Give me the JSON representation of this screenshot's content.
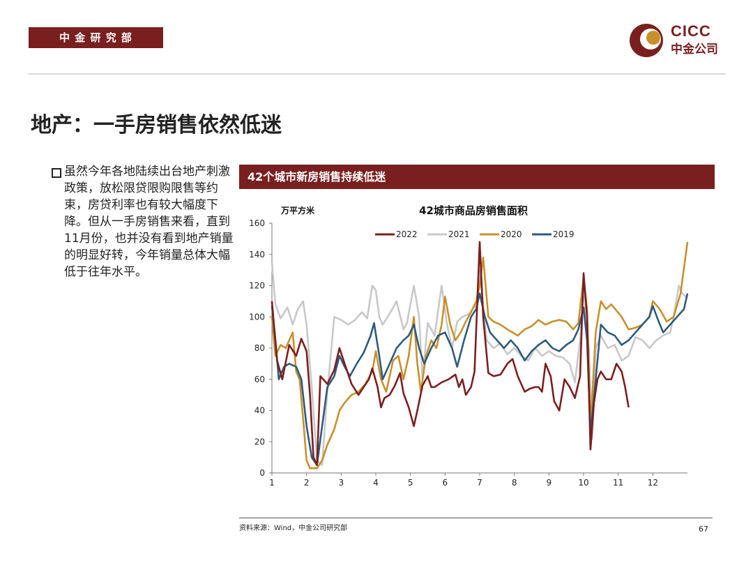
{
  "header": {
    "dept": "中 金 研 究 部",
    "logo_en": "CICC",
    "logo_cn": "中金公司"
  },
  "page_title": "地产：一手房销售依然低迷",
  "bullet": "虽然今年各地陆续出台地产刺激政策，放松限贷限购限售等约束，房贷利率也有较大幅度下降。但从一手房销售来看，直到11月份，也并没有看到地产销量的明显好转，今年销量总体大幅低于往年水平。",
  "chart_banner": "42个城市新房销售持续低迷",
  "source": "资料来源：Wind，中金公司研究部",
  "page_number": "67",
  "colors": {
    "brand": "#7a1f1f",
    "2022": "#7a1f1f",
    "2021": "#c8c8c8",
    "2020": "#c8902a",
    "2019": "#2e5a7e"
  },
  "chart_data": {
    "type": "line",
    "title": "42城市商品房销售面积",
    "ylabel": "万平方米",
    "ylim": [
      0,
      160
    ],
    "yticks": [
      "0",
      "20",
      "40",
      "60",
      "80",
      "100",
      "120",
      "140",
      "160"
    ],
    "xlim": [
      1,
      13
    ],
    "xticks": [
      "1",
      "2",
      "3",
      "4",
      "5",
      "6",
      "7",
      "8",
      "9",
      "10",
      "11",
      "12"
    ],
    "legend_position": "top",
    "series": [
      {
        "name": "2022",
        "color": "#7a1f1f",
        "points": [
          [
            1,
            110
          ],
          [
            1.15,
            72
          ],
          [
            1.3,
            60
          ],
          [
            1.5,
            82
          ],
          [
            1.7,
            75
          ],
          [
            1.85,
            86
          ],
          [
            2.0,
            78
          ],
          [
            2.1,
            50
          ],
          [
            2.2,
            10
          ],
          [
            2.3,
            5
          ],
          [
            2.4,
            62
          ],
          [
            2.6,
            57
          ],
          [
            2.8,
            66
          ],
          [
            2.95,
            80
          ],
          [
            3.1,
            70
          ],
          [
            3.3,
            57
          ],
          [
            3.5,
            50
          ],
          [
            3.65,
            55
          ],
          [
            3.8,
            60
          ],
          [
            3.9,
            67
          ],
          [
            4.05,
            55
          ],
          [
            4.15,
            42
          ],
          [
            4.25,
            48
          ],
          [
            4.4,
            50
          ],
          [
            4.55,
            56
          ],
          [
            4.7,
            64
          ],
          [
            4.8,
            51
          ],
          [
            4.95,
            42
          ],
          [
            5.1,
            30
          ],
          [
            5.2,
            40
          ],
          [
            5.35,
            56
          ],
          [
            5.5,
            62
          ],
          [
            5.6,
            55
          ],
          [
            5.7,
            55
          ],
          [
            5.9,
            58
          ],
          [
            6.1,
            60
          ],
          [
            6.3,
            63
          ],
          [
            6.4,
            55
          ],
          [
            6.5,
            60
          ],
          [
            6.6,
            50
          ],
          [
            6.75,
            55
          ],
          [
            6.85,
            65
          ],
          [
            7.0,
            148
          ],
          [
            7.1,
            100
          ],
          [
            7.25,
            64
          ],
          [
            7.4,
            62
          ],
          [
            7.6,
            63
          ],
          [
            7.8,
            70
          ],
          [
            7.95,
            73
          ],
          [
            8.1,
            62
          ],
          [
            8.2,
            57
          ],
          [
            8.3,
            52
          ],
          [
            8.45,
            54
          ],
          [
            8.6,
            55
          ],
          [
            8.7,
            55
          ],
          [
            8.8,
            52
          ],
          [
            8.9,
            70
          ],
          [
            9.05,
            62
          ],
          [
            9.15,
            46
          ],
          [
            9.3,
            40
          ],
          [
            9.45,
            60
          ],
          [
            9.6,
            55
          ],
          [
            9.75,
            48
          ],
          [
            9.9,
            62
          ],
          [
            10.0,
            128
          ],
          [
            10.1,
            100
          ],
          [
            10.2,
            15
          ],
          [
            10.3,
            45
          ],
          [
            10.4,
            60
          ],
          [
            10.5,
            65
          ],
          [
            10.65,
            60
          ],
          [
            10.8,
            60
          ],
          [
            10.95,
            70
          ],
          [
            11.1,
            65
          ],
          [
            11.2,
            55
          ],
          [
            11.3,
            42
          ]
        ]
      },
      {
        "name": "2021",
        "color": "#c8c8c8",
        "points": [
          [
            1,
            135
          ],
          [
            1.1,
            108
          ],
          [
            1.25,
            99
          ],
          [
            1.45,
            106
          ],
          [
            1.6,
            95
          ],
          [
            1.75,
            105
          ],
          [
            1.9,
            110
          ],
          [
            2.0,
            95
          ],
          [
            2.15,
            55
          ],
          [
            2.3,
            8
          ],
          [
            2.45,
            5
          ],
          [
            2.6,
            52
          ],
          [
            2.8,
            100
          ],
          [
            3.0,
            98
          ],
          [
            3.2,
            95
          ],
          [
            3.4,
            98
          ],
          [
            3.6,
            103
          ],
          [
            3.75,
            99
          ],
          [
            3.9,
            120
          ],
          [
            4.0,
            117
          ],
          [
            4.1,
            100
          ],
          [
            4.2,
            95
          ],
          [
            4.4,
            102
          ],
          [
            4.6,
            110
          ],
          [
            4.8,
            92
          ],
          [
            4.9,
            96
          ],
          [
            5.1,
            120
          ],
          [
            5.25,
            100
          ],
          [
            5.35,
            60
          ],
          [
            5.5,
            96
          ],
          [
            5.7,
            88
          ],
          [
            5.9,
            120
          ],
          [
            6.05,
            96
          ],
          [
            6.2,
            80
          ],
          [
            6.35,
            97
          ],
          [
            6.5,
            100
          ],
          [
            6.7,
            102
          ],
          [
            6.9,
            108
          ],
          [
            7.0,
            130
          ],
          [
            7.2,
            85
          ],
          [
            7.4,
            80
          ],
          [
            7.6,
            83
          ],
          [
            7.8,
            76
          ],
          [
            8.0,
            80
          ],
          [
            8.2,
            75
          ],
          [
            8.4,
            72
          ],
          [
            8.6,
            80
          ],
          [
            8.8,
            75
          ],
          [
            9.0,
            78
          ],
          [
            9.2,
            75
          ],
          [
            9.4,
            74
          ],
          [
            9.6,
            70
          ],
          [
            9.75,
            58
          ],
          [
            9.9,
            85
          ],
          [
            10.0,
            120
          ],
          [
            10.15,
            80
          ],
          [
            10.25,
            22
          ],
          [
            10.35,
            80
          ],
          [
            10.5,
            88
          ],
          [
            10.7,
            80
          ],
          [
            10.9,
            82
          ],
          [
            11.1,
            72
          ],
          [
            11.3,
            75
          ],
          [
            11.5,
            87
          ],
          [
            11.7,
            85
          ],
          [
            11.9,
            80
          ],
          [
            12.1,
            85
          ],
          [
            12.3,
            88
          ],
          [
            12.5,
            90
          ],
          [
            12.6,
            100
          ],
          [
            12.75,
            120
          ],
          [
            12.85,
            115
          ],
          [
            13.0,
            112
          ]
        ]
      },
      {
        "name": "2020",
        "color": "#c8902a",
        "points": [
          [
            1,
            100
          ],
          [
            1.1,
            75
          ],
          [
            1.25,
            82
          ],
          [
            1.4,
            80
          ],
          [
            1.6,
            90
          ],
          [
            1.7,
            65
          ],
          [
            1.8,
            60
          ],
          [
            1.9,
            35
          ],
          [
            2.0,
            8
          ],
          [
            2.1,
            3
          ],
          [
            2.3,
            3
          ],
          [
            2.45,
            8
          ],
          [
            2.6,
            18
          ],
          [
            2.8,
            28
          ],
          [
            2.95,
            40
          ],
          [
            3.1,
            45
          ],
          [
            3.3,
            50
          ],
          [
            3.5,
            52
          ],
          [
            3.7,
            57
          ],
          [
            3.9,
            65
          ],
          [
            4.0,
            78
          ],
          [
            4.15,
            60
          ],
          [
            4.3,
            52
          ],
          [
            4.5,
            72
          ],
          [
            4.65,
            75
          ],
          [
            4.8,
            60
          ],
          [
            4.95,
            75
          ],
          [
            5.1,
            100
          ],
          [
            5.2,
            70
          ],
          [
            5.3,
            52
          ],
          [
            5.45,
            75
          ],
          [
            5.6,
            85
          ],
          [
            5.75,
            80
          ],
          [
            5.9,
            95
          ],
          [
            6.0,
            113
          ],
          [
            6.15,
            95
          ],
          [
            6.3,
            85
          ],
          [
            6.45,
            90
          ],
          [
            6.6,
            97
          ],
          [
            6.75,
            103
          ],
          [
            6.9,
            110
          ],
          [
            7.0,
            120
          ],
          [
            7.1,
            138
          ],
          [
            7.25,
            100
          ],
          [
            7.4,
            97
          ],
          [
            7.6,
            95
          ],
          [
            7.8,
            92
          ],
          [
            7.95,
            90
          ],
          [
            8.1,
            88
          ],
          [
            8.3,
            92
          ],
          [
            8.5,
            94
          ],
          [
            8.7,
            98
          ],
          [
            8.9,
            95
          ],
          [
            9.1,
            97
          ],
          [
            9.3,
            98
          ],
          [
            9.5,
            97
          ],
          [
            9.7,
            92
          ],
          [
            9.85,
            96
          ],
          [
            10.0,
            125
          ],
          [
            10.1,
            105
          ],
          [
            10.2,
            28
          ],
          [
            10.35,
            90
          ],
          [
            10.5,
            110
          ],
          [
            10.65,
            105
          ],
          [
            10.8,
            108
          ],
          [
            10.95,
            104
          ],
          [
            11.1,
            100
          ],
          [
            11.3,
            92
          ],
          [
            11.5,
            93
          ],
          [
            11.7,
            95
          ],
          [
            11.9,
            100
          ],
          [
            12.0,
            110
          ],
          [
            12.2,
            105
          ],
          [
            12.4,
            97
          ],
          [
            12.6,
            100
          ],
          [
            12.8,
            115
          ],
          [
            13.0,
            148
          ]
        ]
      },
      {
        "name": "2019",
        "color": "#2e5a7e",
        "points": [
          [
            1,
            107
          ],
          [
            1.1,
            85
          ],
          [
            1.2,
            60
          ],
          [
            1.35,
            68
          ],
          [
            1.5,
            70
          ],
          [
            1.7,
            68
          ],
          [
            1.85,
            60
          ],
          [
            2.0,
            30
          ],
          [
            2.15,
            10
          ],
          [
            2.3,
            5
          ],
          [
            2.45,
            30
          ],
          [
            2.6,
            55
          ],
          [
            2.8,
            62
          ],
          [
            2.95,
            75
          ],
          [
            3.1,
            68
          ],
          [
            3.25,
            62
          ],
          [
            3.45,
            70
          ],
          [
            3.65,
            77
          ],
          [
            3.85,
            88
          ],
          [
            3.95,
            96
          ],
          [
            4.1,
            75
          ],
          [
            4.2,
            60
          ],
          [
            4.4,
            70
          ],
          [
            4.6,
            80
          ],
          [
            4.8,
            85
          ],
          [
            4.95,
            88
          ],
          [
            5.1,
            95
          ],
          [
            5.25,
            80
          ],
          [
            5.4,
            70
          ],
          [
            5.6,
            80
          ],
          [
            5.8,
            88
          ],
          [
            6.0,
            90
          ],
          [
            6.2,
            80
          ],
          [
            6.35,
            68
          ],
          [
            6.55,
            85
          ],
          [
            6.75,
            100
          ],
          [
            6.9,
            105
          ],
          [
            7.0,
            115
          ],
          [
            7.15,
            100
          ],
          [
            7.3,
            90
          ],
          [
            7.5,
            85
          ],
          [
            7.7,
            80
          ],
          [
            7.9,
            85
          ],
          [
            8.1,
            80
          ],
          [
            8.3,
            72
          ],
          [
            8.5,
            78
          ],
          [
            8.7,
            82
          ],
          [
            8.9,
            85
          ],
          [
            9.1,
            80
          ],
          [
            9.3,
            78
          ],
          [
            9.5,
            82
          ],
          [
            9.7,
            85
          ],
          [
            9.85,
            92
          ],
          [
            10.0,
            106
          ],
          [
            10.1,
            85
          ],
          [
            10.2,
            25
          ],
          [
            10.35,
            60
          ],
          [
            10.5,
            95
          ],
          [
            10.7,
            90
          ],
          [
            10.9,
            88
          ],
          [
            11.1,
            82
          ],
          [
            11.3,
            85
          ],
          [
            11.5,
            90
          ],
          [
            11.7,
            95
          ],
          [
            11.9,
            100
          ],
          [
            12.0,
            107
          ],
          [
            12.15,
            98
          ],
          [
            12.3,
            90
          ],
          [
            12.5,
            95
          ],
          [
            12.7,
            100
          ],
          [
            12.9,
            105
          ],
          [
            13.0,
            115
          ]
        ]
      }
    ]
  }
}
